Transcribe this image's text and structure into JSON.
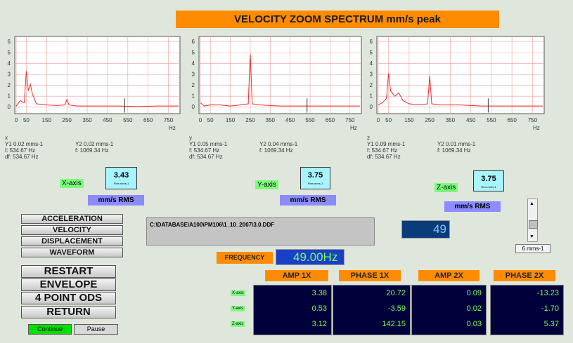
{
  "title": "VELOCITY ZOOM SPECTRUM mm/s peak",
  "charts": [
    {
      "type": "line",
      "axis_name": "x",
      "x_unit": "Hz",
      "color": "#e83030",
      "xlim": [
        0,
        800
      ],
      "ylim": [
        -0.6,
        6.5
      ],
      "xticks": [
        0,
        50,
        150,
        250,
        350,
        450,
        550,
        650,
        750
      ],
      "yticks": [
        0,
        1,
        2,
        3,
        4,
        5,
        6
      ],
      "x": [
        0,
        20,
        40,
        50,
        60,
        70,
        80,
        100,
        150,
        200,
        240,
        250,
        260,
        300,
        400,
        500,
        600,
        700,
        800
      ],
      "values": [
        0.1,
        0.6,
        0.4,
        3.3,
        1.5,
        2.1,
        1.2,
        0.3,
        0.2,
        0.15,
        0.2,
        0.7,
        0.2,
        0.1,
        0.1,
        0.1,
        0.05,
        0.1,
        0.1
      ],
      "readout": {
        "y1": "Y1 0.02 mms-1",
        "y2": "Y2 0.02 mms-1",
        "f1": "f:  534.67 Hz",
        "f2": "f:   1069.34 Hz",
        "df": "df:  534.67 Hz"
      },
      "cursor": 534.67
    },
    {
      "type": "line",
      "axis_name": "y",
      "x_unit": "Hz",
      "color": "#e83030",
      "xlim": [
        0,
        800
      ],
      "ylim": [
        -0.6,
        6.5
      ],
      "xticks": [
        0,
        50,
        150,
        250,
        350,
        450,
        550,
        650,
        750
      ],
      "yticks": [
        0,
        1,
        2,
        3,
        4,
        5,
        6
      ],
      "x": [
        0,
        20,
        50,
        100,
        150,
        200,
        240,
        250,
        260,
        300,
        400,
        500,
        600,
        700,
        800
      ],
      "values": [
        0.4,
        0.1,
        0.2,
        0.2,
        0.1,
        0.2,
        0.3,
        4.9,
        0.3,
        0.2,
        0.1,
        0.1,
        0.1,
        0.1,
        0.1
      ],
      "readout": {
        "y1": "Y1 0.05 mms-1",
        "y2": "Y2 0.04 mms-1",
        "f1": "f:  534.67 Hz",
        "f2": "f:   1069.34 Hz",
        "df": "df:  534.67 Hz"
      },
      "cursor": 534.67
    },
    {
      "type": "line",
      "axis_name": "z",
      "x_unit": "Hz",
      "color": "#e83030",
      "xlim": [
        0,
        800
      ],
      "ylim": [
        -0.6,
        6.5
      ],
      "xticks": [
        0,
        50,
        150,
        250,
        350,
        450,
        550,
        650,
        750
      ],
      "yticks": [
        0,
        1,
        2,
        3,
        4,
        5,
        6
      ],
      "x": [
        0,
        20,
        40,
        50,
        60,
        80,
        100,
        120,
        150,
        200,
        240,
        250,
        260,
        300,
        400,
        500,
        600,
        700,
        800
      ],
      "values": [
        0.2,
        0.4,
        0.8,
        3.1,
        1.5,
        1.0,
        1.3,
        0.6,
        0.3,
        0.2,
        0.3,
        2.9,
        0.3,
        0.2,
        0.2,
        0.1,
        0.1,
        0.1,
        0.1
      ],
      "readout": {
        "y1": "Y1 0.09 mms-1",
        "y2": "Y2 0.01 mms-1",
        "f1": "f:  534.67 Hz",
        "f2": "f:   1069.34 Hz",
        "df": "df:  534.67 Hz"
      },
      "cursor": 534.67
    }
  ],
  "rms": [
    {
      "label": "X-axis",
      "value": "3.43",
      "unit": "Rms mms-1",
      "caption": "mm/s RMS"
    },
    {
      "label": "Y-axis",
      "value": "3.75",
      "unit": "Rms mms-1",
      "caption": "mm/s RMS"
    },
    {
      "label": "Z-axis",
      "value": "3.75",
      "unit": "Rms mms-1",
      "caption": "mm/s RMS"
    }
  ],
  "modes": [
    "ACCELERATION",
    "VELOCITY",
    "DISPLACEMENT",
    "WAVEFORM"
  ],
  "actions": [
    "RESTART",
    "ENVELOPE",
    "4 POINT ODS",
    "RETURN"
  ],
  "run": [
    "Continue",
    "Pause"
  ],
  "file_path": "C:\\DATABASE\\A100\\PM106\\1_10_2007\\3.0.DDF",
  "counter": "49",
  "scale": "6 mms-1",
  "frequency": {
    "label": "FREQUENCY",
    "value": "49.00",
    "unit": "Hz"
  },
  "table": {
    "headers": [
      "AMP 1X",
      "PHASE 1X",
      "AMP 2X",
      "PHASE 2X"
    ],
    "row_labels": [
      "X-axis",
      "Y-axis",
      "Z-axis"
    ],
    "rows": [
      [
        "3.38",
        "20.72",
        "0.09",
        "-13.23"
      ],
      [
        "0.53",
        "-3.59",
        "0.02",
        "-1.70"
      ],
      [
        "3.12",
        "142.15",
        "0.03",
        "5.37"
      ]
    ]
  }
}
